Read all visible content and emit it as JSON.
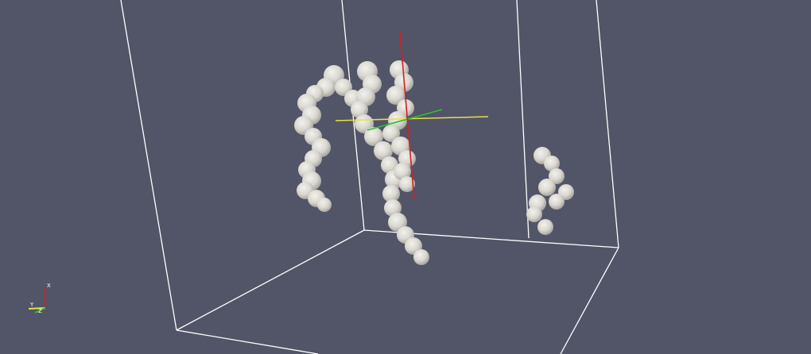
{
  "app": {
    "view_type": "3D render view"
  },
  "colors": {
    "background": "#525468",
    "bounding_box": "#ffffff",
    "molecule_surface": "#dcdad4",
    "axis_x": "#d42020",
    "axis_y": "#e8e040",
    "axis_z": "#30c030"
  },
  "orientation_axes": {
    "x_label": "X",
    "y_label": "Y",
    "z_label": "Z"
  },
  "scene": {
    "objects": [
      {
        "name": "left-helix",
        "kind": "molecular-surface"
      },
      {
        "name": "center-helix-a",
        "kind": "molecular-surface"
      },
      {
        "name": "center-helix-b",
        "kind": "molecular-surface"
      },
      {
        "name": "right-fragment",
        "kind": "molecular-surface"
      }
    ],
    "bounding_box": true,
    "center_axes_widget": true
  }
}
